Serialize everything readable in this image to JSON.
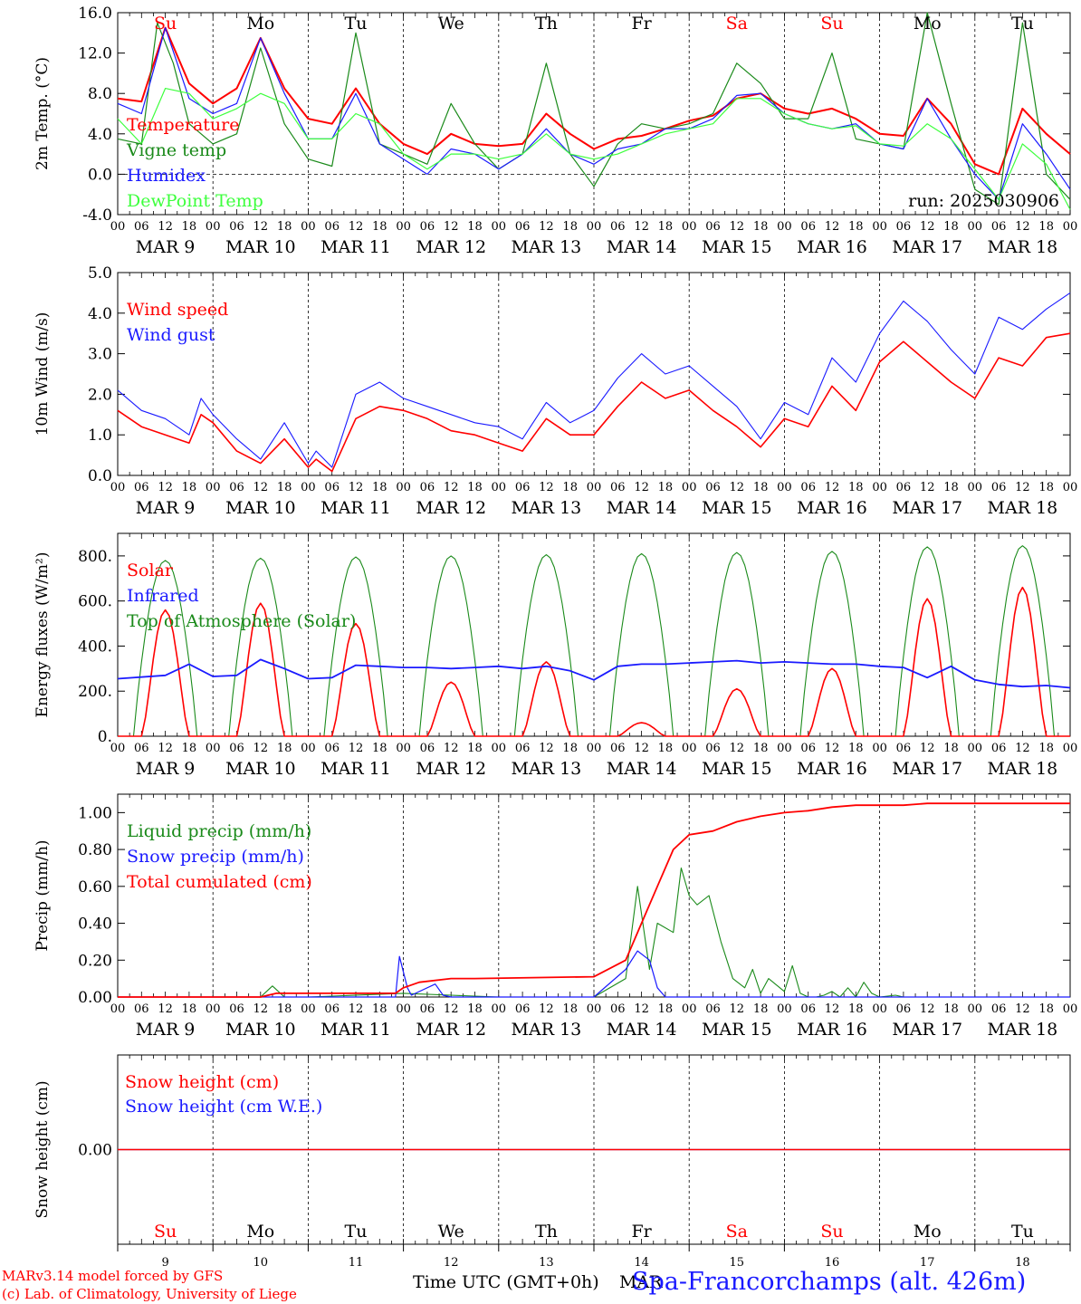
{
  "run_label": "run: 2025030906",
  "x_hours": [
    "00",
    "06",
    "12",
    "18"
  ],
  "day_labels": [
    "MAR  9",
    "MAR 10",
    "MAR 11",
    "MAR 12",
    "MAR 13",
    "MAR 14",
    "MAR 15",
    "MAR 16",
    "MAR 17",
    "MAR 18"
  ],
  "weekdays": [
    "Su",
    "Mo",
    "Tu",
    "We",
    "Th",
    "Fr",
    "Sa",
    "Su",
    "Mo",
    "Tu"
  ],
  "weekday_colors": [
    "#ff0000",
    "#000000",
    "#000000",
    "#000000",
    "#000000",
    "#000000",
    "#ff0000",
    "#ff0000",
    "#000000",
    "#000000"
  ],
  "day_numbers": [
    "9",
    "10",
    "11",
    "12",
    "13",
    "14",
    "15",
    "16",
    "17",
    "18"
  ],
  "colors": {
    "red": "#ff0000",
    "green": "#1a8a1a",
    "blue": "#1a1aff",
    "lightgreen": "#3dff3d"
  },
  "footer": {
    "line1": "MARv3.14 model forced by GFS",
    "line2": "(c) Lab. of Climatology, University of Liege",
    "xlabel": "Time UTC (GMT+0h)",
    "mar": "MAR",
    "station": "Spa-Francorchamps (alt. 426m)"
  },
  "chart_data": [
    {
      "type": "line",
      "ylabel": "2m Temp. (°C)",
      "ylim": [
        -4,
        16
      ],
      "yticks": [
        "-4.0",
        "0.0",
        "4.0",
        "8.0",
        "12.0",
        "16.0"
      ],
      "x_unit": "hours since MAR 9 00 UTC",
      "series": [
        {
          "name": "Temperature",
          "color": "#ff0000",
          "x": [
            0,
            6,
            12,
            18,
            24,
            30,
            36,
            42,
            48,
            54,
            60,
            66,
            72,
            78,
            84,
            90,
            96,
            102,
            108,
            114,
            120,
            126,
            132,
            138,
            144,
            150,
            156,
            162,
            168,
            174,
            180,
            186,
            192,
            198,
            204,
            210,
            216,
            222,
            228,
            234,
            240
          ],
          "values": [
            7.5,
            7.2,
            14.5,
            9,
            7,
            8.5,
            13.5,
            8.5,
            5.5,
            5,
            8.5,
            5,
            3,
            2,
            4,
            3,
            2.8,
            3,
            6,
            4,
            2.5,
            3.5,
            3.8,
            4.5,
            5.3,
            5.8,
            7.5,
            8,
            6.5,
            6,
            6.5,
            5.5,
            4,
            3.8,
            7.5,
            5,
            1,
            0,
            6.5,
            4,
            2
          ]
        },
        {
          "name": "Vigne temp",
          "color": "#1a8a1a",
          "x": [
            0,
            6,
            10,
            14,
            18,
            24,
            30,
            36,
            42,
            48,
            54,
            60,
            66,
            72,
            78,
            84,
            90,
            96,
            102,
            108,
            114,
            120,
            126,
            132,
            138,
            144,
            150,
            156,
            162,
            168,
            174,
            180,
            186,
            192,
            198,
            204,
            210,
            216,
            222,
            228,
            234,
            240
          ],
          "values": [
            3.5,
            3,
            15,
            11,
            5,
            3,
            4,
            12.5,
            5,
            1.5,
            0.8,
            14,
            3,
            2,
            1,
            7,
            3,
            0.5,
            2,
            11,
            2,
            -1.2,
            3,
            5,
            4.5,
            5,
            6,
            11,
            9,
            5.5,
            5.5,
            12,
            3.5,
            3,
            2.5,
            16,
            7,
            -1.5,
            -3,
            15,
            0,
            -2.5
          ]
        },
        {
          "name": "Humidex",
          "color": "#1a1aff",
          "x": [
            0,
            6,
            12,
            18,
            24,
            30,
            36,
            42,
            48,
            54,
            60,
            66,
            72,
            78,
            84,
            90,
            96,
            102,
            108,
            114,
            120,
            126,
            132,
            138,
            144,
            150,
            156,
            162,
            168,
            174,
            180,
            186,
            192,
            198,
            204,
            210,
            216,
            222,
            228,
            234,
            240
          ],
          "values": [
            7,
            6,
            14.5,
            7.5,
            6,
            7,
            13.5,
            8,
            3.5,
            3.5,
            8,
            3,
            1.5,
            0,
            2.5,
            2,
            0.5,
            2,
            4.5,
            2,
            1,
            2.5,
            3,
            4.5,
            4.5,
            5.5,
            7.8,
            8,
            6,
            5,
            4.5,
            5,
            3,
            2.5,
            7.5,
            3.5,
            0,
            -2.5,
            5,
            2,
            -1.5
          ]
        },
        {
          "name": "DewPoint Temp",
          "color": "#3dff3d",
          "x": [
            0,
            6,
            12,
            18,
            24,
            30,
            36,
            42,
            48,
            54,
            60,
            66,
            72,
            78,
            84,
            90,
            96,
            102,
            108,
            114,
            120,
            126,
            132,
            138,
            144,
            150,
            156,
            162,
            168,
            174,
            180,
            186,
            192,
            198,
            204,
            210,
            216,
            222,
            228,
            234,
            240
          ],
          "values": [
            5.5,
            3,
            8.5,
            8,
            5.5,
            6.5,
            8,
            7,
            3.5,
            3.5,
            6,
            5,
            2,
            0.5,
            2,
            2,
            1.5,
            2,
            4,
            2,
            1.5,
            2,
            3,
            4,
            4.5,
            5,
            7.5,
            7.5,
            6,
            5,
            4.5,
            4.8,
            3,
            2.8,
            5,
            3.5,
            0.5,
            -2.5,
            3,
            1,
            -3.5
          ]
        }
      ]
    },
    {
      "type": "line",
      "ylabel": "10m Wind (m/s)",
      "ylim": [
        0,
        5
      ],
      "yticks": [
        "0.0",
        "1.0",
        "2.0",
        "3.0",
        "4.0",
        "5.0"
      ],
      "series": [
        {
          "name": "Wind speed",
          "color": "#ff0000",
          "x": [
            0,
            6,
            12,
            18,
            21,
            24,
            30,
            36,
            42,
            48,
            50,
            54,
            60,
            66,
            72,
            78,
            84,
            90,
            96,
            102,
            108,
            114,
            120,
            126,
            132,
            138,
            144,
            150,
            156,
            162,
            168,
            174,
            180,
            186,
            192,
            198,
            204,
            210,
            216,
            222,
            228,
            234,
            240
          ],
          "values": [
            1.6,
            1.2,
            1.0,
            0.8,
            1.5,
            1.3,
            0.6,
            0.3,
            0.9,
            0.2,
            0.4,
            0.1,
            1.4,
            1.7,
            1.6,
            1.4,
            1.1,
            1.0,
            0.8,
            0.6,
            1.4,
            1.0,
            1.0,
            1.7,
            2.3,
            1.9,
            2.1,
            1.6,
            1.2,
            0.7,
            1.4,
            1.2,
            2.2,
            1.6,
            2.8,
            3.3,
            2.8,
            2.3,
            1.9,
            2.9,
            2.7,
            3.4,
            3.5
          ]
        },
        {
          "name": "Wind gust",
          "color": "#1a1aff",
          "x": [
            0,
            6,
            12,
            18,
            21,
            24,
            30,
            36,
            42,
            48,
            50,
            54,
            60,
            66,
            72,
            78,
            84,
            90,
            96,
            102,
            108,
            114,
            120,
            126,
            132,
            138,
            144,
            150,
            156,
            162,
            168,
            174,
            180,
            186,
            192,
            198,
            204,
            210,
            216,
            222,
            228,
            234,
            240
          ],
          "values": [
            2.1,
            1.6,
            1.4,
            1.0,
            1.9,
            1.5,
            0.9,
            0.4,
            1.3,
            0.3,
            0.6,
            0.2,
            2.0,
            2.3,
            1.9,
            1.7,
            1.5,
            1.3,
            1.2,
            0.9,
            1.8,
            1.3,
            1.6,
            2.4,
            3.0,
            2.5,
            2.7,
            2.2,
            1.7,
            0.9,
            1.8,
            1.5,
            2.9,
            2.3,
            3.5,
            4.3,
            3.8,
            3.1,
            2.5,
            3.9,
            3.6,
            4.1,
            4.5
          ]
        }
      ]
    },
    {
      "type": "line",
      "ylabel": "Energy fluxes (W/m²)",
      "ylim": [
        0,
        900
      ],
      "yticks": [
        "0.",
        "200.",
        "400.",
        "600.",
        "800."
      ],
      "series": [
        {
          "name": "Solar",
          "color": "#ff0000",
          "peaks": [
            560,
            590,
            500,
            240,
            330,
            60,
            210,
            300,
            610,
            660
          ]
        },
        {
          "name": "Infrared",
          "color": "#1a1aff",
          "x": [
            0,
            12,
            18,
            24,
            30,
            36,
            42,
            48,
            54,
            60,
            66,
            72,
            78,
            84,
            90,
            96,
            102,
            108,
            114,
            120,
            126,
            132,
            138,
            144,
            150,
            156,
            162,
            168,
            174,
            180,
            186,
            192,
            198,
            204,
            210,
            216,
            222,
            228,
            234,
            240
          ],
          "values": [
            255,
            270,
            320,
            265,
            270,
            340,
            300,
            255,
            260,
            315,
            310,
            305,
            305,
            300,
            305,
            310,
            300,
            310,
            290,
            250,
            310,
            320,
            320,
            325,
            330,
            335,
            325,
            330,
            325,
            320,
            320,
            310,
            305,
            260,
            310,
            250,
            230,
            220,
            225,
            215
          ]
        },
        {
          "name": "Top of Atmosphere (Solar)",
          "color": "#1a8a1a",
          "peaks": [
            780,
            790,
            795,
            800,
            805,
            810,
            815,
            820,
            840,
            845
          ]
        }
      ]
    },
    {
      "type": "line",
      "ylabel": "Precip (mm/h)",
      "ylim": [
        0,
        1.1
      ],
      "yticks": [
        "0.00",
        "0.20",
        "0.40",
        "0.60",
        "0.80",
        "1.00"
      ],
      "series": [
        {
          "name": "Liquid precip (mm/h)",
          "color": "#1a8a1a",
          "x": [
            0,
            36,
            39,
            42,
            48,
            72,
            84,
            96,
            120,
            128,
            131,
            134,
            136,
            140,
            142,
            144,
            146,
            149,
            152,
            155,
            158,
            160,
            162,
            164,
            168,
            170,
            172,
            174,
            176,
            178,
            180,
            182,
            184,
            186,
            188,
            190,
            192,
            196,
            198,
            200,
            240
          ],
          "values": [
            0,
            0,
            0.06,
            0,
            0,
            0.02,
            0.01,
            0,
            0,
            0.1,
            0.6,
            0.15,
            0.4,
            0.35,
            0.7,
            0.55,
            0.5,
            0.55,
            0.3,
            0.1,
            0.05,
            0.15,
            0.02,
            0.1,
            0.03,
            0.17,
            0.02,
            0,
            0,
            0.01,
            0.03,
            0,
            0.05,
            0,
            0.08,
            0.02,
            0,
            0.01,
            0,
            0,
            0
          ]
        },
        {
          "name": "Snow precip (mm/h)",
          "color": "#1a1aff",
          "x": [
            0,
            70,
            71,
            73,
            74,
            80,
            82,
            84,
            120,
            128,
            131,
            134,
            136,
            138,
            240
          ],
          "values": [
            0,
            0,
            0.22,
            0.05,
            0.01,
            0.07,
            0.01,
            0,
            0,
            0.15,
            0.25,
            0.2,
            0.05,
            0,
            0
          ]
        },
        {
          "name": "Total cumulated (cm)",
          "color": "#ff0000",
          "x": [
            0,
            36,
            40,
            70,
            72,
            76,
            84,
            90,
            120,
            128,
            132,
            136,
            140,
            144,
            150,
            156,
            162,
            168,
            174,
            180,
            186,
            192,
            198,
            204,
            210,
            216,
            240
          ],
          "values": [
            0,
            0,
            0.02,
            0.02,
            0.05,
            0.08,
            0.1,
            0.1,
            0.11,
            0.2,
            0.4,
            0.6,
            0.8,
            0.88,
            0.9,
            0.95,
            0.98,
            1.0,
            1.01,
            1.03,
            1.04,
            1.04,
            1.04,
            1.05,
            1.05,
            1.05,
            1.05
          ]
        }
      ]
    },
    {
      "type": "line",
      "ylabel": "Snow height (cm)",
      "ylim": [
        -1,
        1
      ],
      "yticks": [
        "0.00"
      ],
      "series": [
        {
          "name": "Snow height (cm)",
          "color": "#ff0000",
          "x": [
            0,
            240
          ],
          "values": [
            0,
            0
          ]
        },
        {
          "name": "Snow height (cm W.E.)",
          "color": "#1a1aff",
          "x": [
            0,
            240
          ],
          "values": [
            0,
            0
          ]
        }
      ]
    }
  ]
}
